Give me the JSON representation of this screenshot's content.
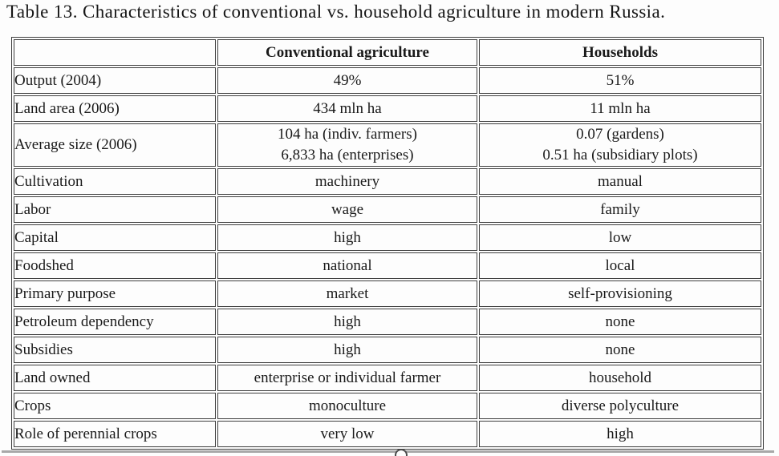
{
  "page": {
    "title": "Table 13. Characteristics of conventional vs. household agriculture in modern Russia."
  },
  "colors": {
    "table_border": "#3f3f3f",
    "text": "#1a1a1a",
    "page_background": "#fdfdfd",
    "bottom_rule": "#a8a8a8"
  },
  "table": {
    "columns": [
      "",
      "Conventional agriculture",
      "Households"
    ],
    "rows": [
      {
        "label": "Output (2004)",
        "conventional": "49%",
        "households": "51%"
      },
      {
        "label": "Land area (2006)",
        "conventional": "434 mln ha",
        "households": "11 mln ha"
      },
      {
        "label": "Average size (2006)",
        "conventional": [
          "104 ha (indiv. farmers)",
          "6,833 ha (enterprises)"
        ],
        "households": [
          "0.07 (gardens)",
          "0.51 ha (subsidiary plots)"
        ]
      },
      {
        "label": "Cultivation",
        "conventional": "machinery",
        "households": "manual"
      },
      {
        "label": "Labor",
        "conventional": "wage",
        "households": "family"
      },
      {
        "label": "Capital",
        "conventional": "high",
        "households": "low"
      },
      {
        "label": "Foodshed",
        "conventional": "national",
        "households": "local"
      },
      {
        "label": "Primary purpose",
        "conventional": "market",
        "households": "self-provisioning"
      },
      {
        "label": "Petroleum dependency",
        "conventional": "high",
        "households": "none"
      },
      {
        "label": "Subsidies",
        "conventional": "high",
        "households": "none"
      },
      {
        "label": "Land owned",
        "conventional": "enterprise or individual farmer",
        "households": "household"
      },
      {
        "label": "Crops",
        "conventional": "monoculture",
        "households": "diverse polyculture"
      },
      {
        "label": "Role of perennial crops",
        "conventional": "very low",
        "households": "high"
      }
    ]
  }
}
